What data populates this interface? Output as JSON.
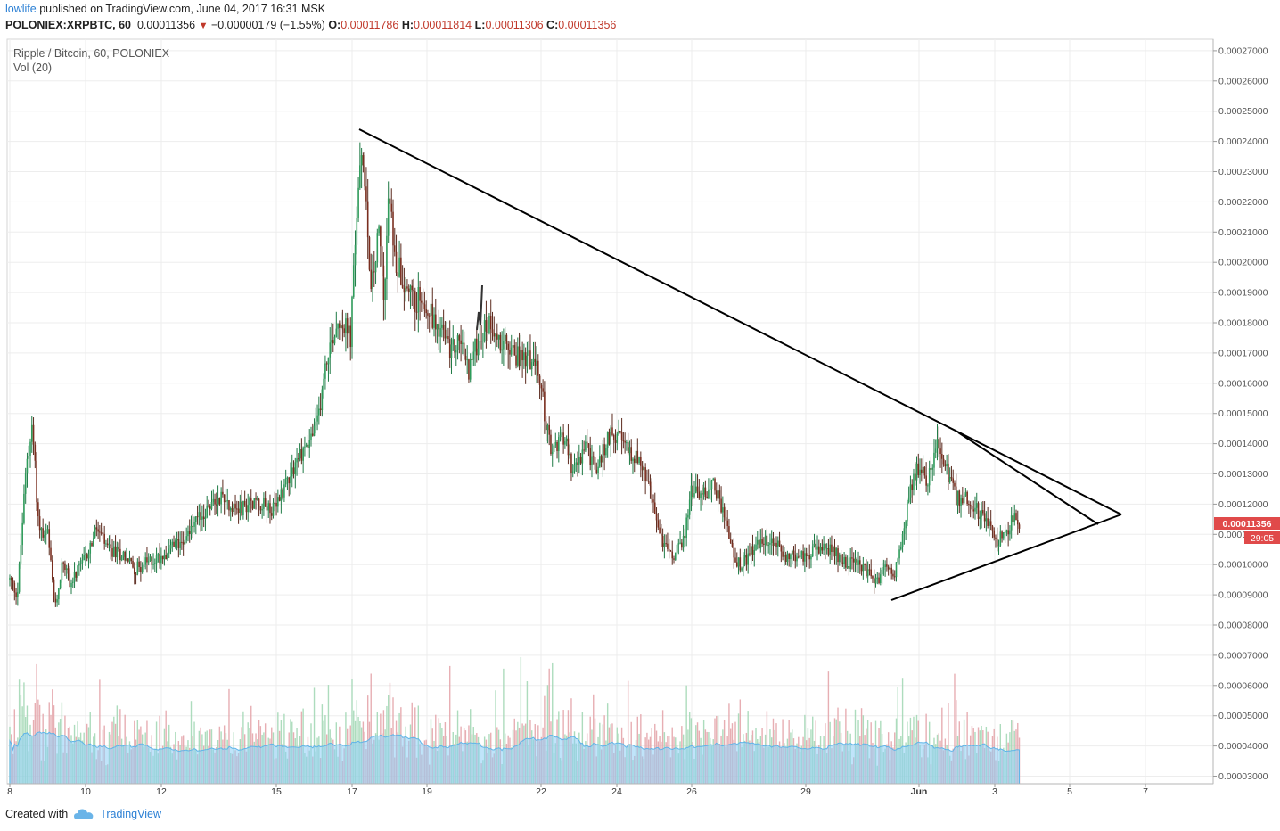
{
  "header": {
    "author": "lowlife",
    "published_text": " published on TradingView.com, June 04, 2017 16:31 MSK"
  },
  "quote": {
    "symbol": "POLONIEX:XRPBTC, 60",
    "last": "0.00011356",
    "change": "−0.00000179 (−1.55%)",
    "open_label": "O:",
    "open": "0.00011786",
    "high_label": "H:",
    "high": "0.00011814",
    "low_label": "L:",
    "low": "0.00011306",
    "close_label": "C:",
    "close": "0.00011356"
  },
  "legend": {
    "pair": "Ripple / Bitcoin, 60, POLONIEX",
    "volume": "Vol (20)"
  },
  "price_badge": {
    "price": "0.00011356",
    "countdown": "29:05"
  },
  "footer": {
    "created_with": "Created with",
    "brand": "TradingView"
  },
  "colors": {
    "up": "#53b987",
    "down": "#eb4d5c",
    "body_dark": "#5b2a1e",
    "volume_ma": "#8ccdf5",
    "badge": "#e04a4a"
  },
  "chart_data": {
    "type": "candlestick",
    "x_axis": {
      "ticks": [
        "8",
        "10",
        "12",
        "15",
        "17",
        "19",
        "22",
        "24",
        "26",
        "29",
        "Jun",
        "3",
        "5",
        "7"
      ]
    },
    "y_axis": {
      "ticks": [
        "0.00003000",
        "0.00004000",
        "0.00005000",
        "0.00006000",
        "0.00007000",
        "0.00008000",
        "0.00009000",
        "0.00010000",
        "0.00011000",
        "0.00012000",
        "0.00013000",
        "0.00014000",
        "0.00015000",
        "0.00016000",
        "0.00017000",
        "0.00018000",
        "0.00019000",
        "0.00020000",
        "0.00021000",
        "0.00022000",
        "0.00023000",
        "0.00024000",
        "0.00025000",
        "0.00026000",
        "0.00027000"
      ],
      "range": [
        2.75e-05,
        0.0002775
      ]
    },
    "price_path": [
      [
        8.0,
        9.5e-05
      ],
      [
        8.2,
        9e-05
      ],
      [
        8.45,
        0.000135
      ],
      [
        8.6,
        0.000145
      ],
      [
        8.75,
        0.000115
      ],
      [
        8.9,
        0.000108
      ],
      [
        9.0,
        0.00011
      ],
      [
        9.2,
        8.5e-05
      ],
      [
        9.4,
        0.000102
      ],
      [
        9.6,
        9.35e-05
      ],
      [
        10.0,
        0.000102
      ],
      [
        10.3,
        0.000112
      ],
      [
        10.6,
        0.0001045
      ],
      [
        11.0,
        0.0001035
      ],
      [
        11.3,
        9.85e-05
      ],
      [
        11.7,
        0.000101
      ],
      [
        12.0,
        0.000103
      ],
      [
        12.4,
        0.0001065
      ],
      [
        12.8,
        0.000112
      ],
      [
        13.2,
        0.000118
      ],
      [
        13.6,
        0.000123
      ],
      [
        14.0,
        0.000118
      ],
      [
        14.5,
        0.000121
      ],
      [
        15.0,
        0.000118
      ],
      [
        15.3,
        0.000128
      ],
      [
        15.7,
        0.000137
      ],
      [
        16.1,
        0.000145
      ],
      [
        16.4,
        0.00017
      ],
      [
        16.7,
        0.000182
      ],
      [
        17.0,
        0.000175
      ],
      [
        17.2,
        0.000225
      ],
      [
        17.35,
        0.000235
      ],
      [
        17.55,
        0.00019
      ],
      [
        17.75,
        0.00021
      ],
      [
        17.9,
        0.000188
      ],
      [
        18.0,
        0.000221
      ],
      [
        18.2,
        0.000201
      ],
      [
        18.45,
        0.000193
      ],
      [
        18.7,
        0.000186
      ],
      [
        18.9,
        0.00019
      ],
      [
        19.1,
        0.000183
      ],
      [
        19.4,
        0.000178
      ],
      [
        19.65,
        0.00017
      ],
      [
        19.9,
        0.000175
      ],
      [
        20.1,
        0.000164
      ],
      [
        20.4,
        0.000175
      ],
      [
        20.7,
        0.000181
      ],
      [
        21.0,
        0.000173
      ],
      [
        21.4,
        0.000169
      ],
      [
        21.8,
        0.000168
      ],
      [
        22.0,
        0.000161
      ],
      [
        22.3,
        0.000136
      ],
      [
        22.6,
        0.000144
      ],
      [
        22.9,
        0.00013
      ],
      [
        23.2,
        0.000139
      ],
      [
        23.5,
        0.000131
      ],
      [
        23.9,
        0.000145
      ],
      [
        24.3,
        0.000138
      ],
      [
        24.6,
        0.000135
      ],
      [
        24.9,
        0.000125
      ],
      [
        25.2,
        0.000109
      ],
      [
        25.5,
        0.000102
      ],
      [
        25.8,
        0.000108
      ],
      [
        26.0,
        0.000125
      ],
      [
        26.3,
        0.000123
      ],
      [
        26.6,
        0.000127
      ],
      [
        26.9,
        0.000115
      ],
      [
        27.1,
        0.0001035
      ],
      [
        27.3,
        9.9e-05
      ],
      [
        27.7,
        0.000106
      ],
      [
        28.1,
        0.000108
      ],
      [
        28.5,
        0.000103
      ],
      [
        28.9,
        0.0001025
      ],
      [
        29.3,
        0.000105
      ],
      [
        29.7,
        0.0001045
      ],
      [
        30.1,
        0.000101
      ],
      [
        30.5,
        9.9e-05
      ],
      [
        30.9,
        9.4e-05
      ],
      [
        31.1,
        9.9e-05
      ],
      [
        31.4,
        9.8e-05
      ],
      [
        31.6,
        0.00011
      ],
      [
        31.8,
        0.000125
      ],
      [
        32.0,
        0.000132
      ],
      [
        32.25,
        0.000128
      ],
      [
        32.5,
        0.000141
      ],
      [
        32.75,
        0.000131
      ],
      [
        33.0,
        0.000122
      ],
      [
        33.3,
        0.000122
      ],
      [
        33.6,
        0.000117
      ],
      [
        33.9,
        0.000114
      ],
      [
        34.1,
        0.0001075
      ],
      [
        34.3,
        0.000111
      ],
      [
        34.55,
        0.0001155
      ],
      [
        34.7,
        0.0001135
      ]
    ],
    "price_labels": {
      "dates": [
        "May 8",
        "May 10",
        "May 12",
        "May 15",
        "May 17",
        "May 19",
        "May 22",
        "May 24",
        "May 26",
        "May 29",
        "Jun 1",
        "Jun 3",
        "Jun 5",
        "Jun 7"
      ]
    }
  }
}
